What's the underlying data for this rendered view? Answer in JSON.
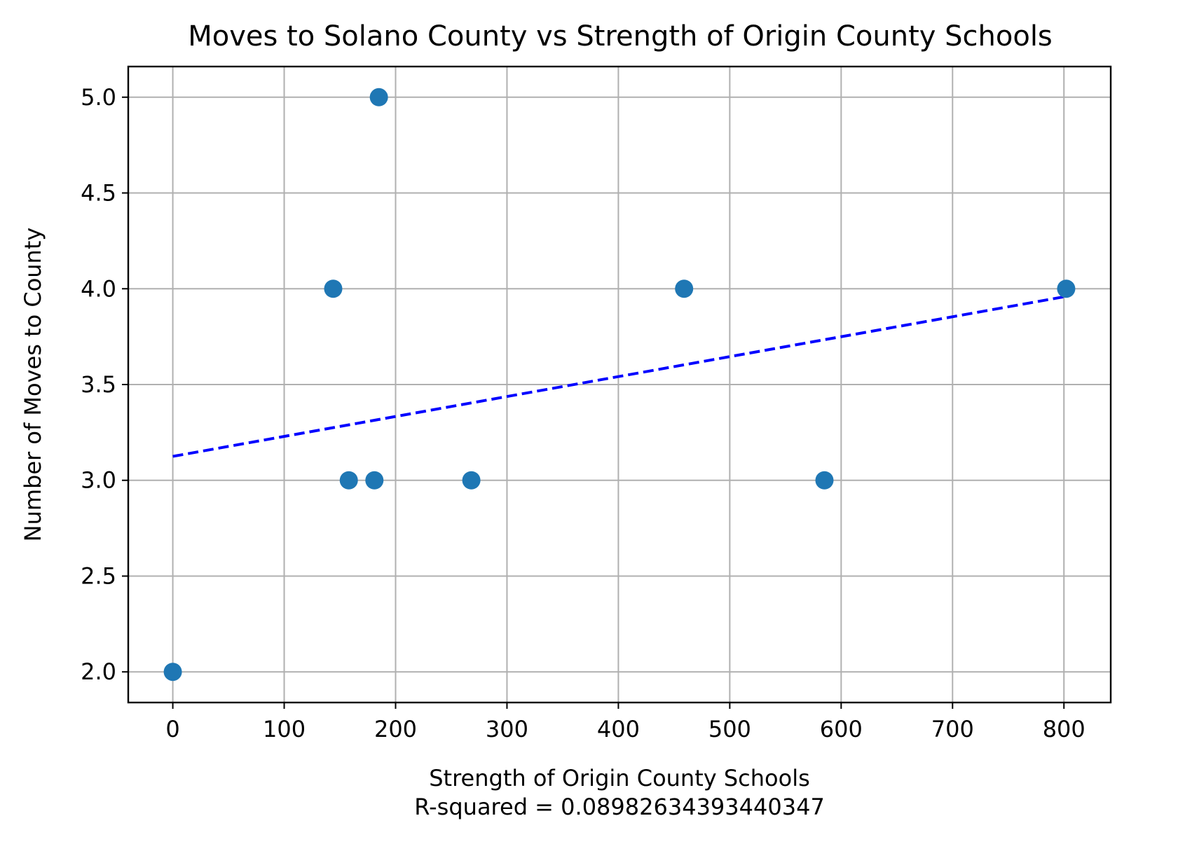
{
  "chart_data": {
    "type": "scatter",
    "title": "Moves to Solano County vs Strength of Origin County Schools",
    "xlabel": "Strength of Origin County Schools",
    "xlabel_sub": "R-squared = 0.08982634393440347",
    "ylabel": "Number of Moves to County",
    "xlim": [
      -40,
      842
    ],
    "ylim": [
      1.84,
      5.16
    ],
    "xticks": [
      0,
      100,
      200,
      300,
      400,
      500,
      600,
      700,
      800
    ],
    "yticks": [
      2.0,
      2.5,
      3.0,
      3.5,
      4.0,
      4.5,
      5.0
    ],
    "xtick_labels": [
      "0",
      "100",
      "200",
      "300",
      "400",
      "500",
      "600",
      "700",
      "800"
    ],
    "ytick_labels": [
      "2.0",
      "2.5",
      "3.0",
      "3.5",
      "4.0",
      "4.5",
      "5.0"
    ],
    "grid": true,
    "point_color": "#1f77b4",
    "trend_color": "#0000ff",
    "points": [
      {
        "x": 0,
        "y": 2
      },
      {
        "x": 144,
        "y": 4
      },
      {
        "x": 158,
        "y": 3
      },
      {
        "x": 181,
        "y": 3
      },
      {
        "x": 185,
        "y": 5
      },
      {
        "x": 268,
        "y": 3
      },
      {
        "x": 459,
        "y": 4
      },
      {
        "x": 585,
        "y": 3
      },
      {
        "x": 802,
        "y": 4
      }
    ],
    "trendline": {
      "style": "dashed",
      "x": [
        0,
        802
      ],
      "y": [
        3.125,
        3.96
      ]
    }
  }
}
